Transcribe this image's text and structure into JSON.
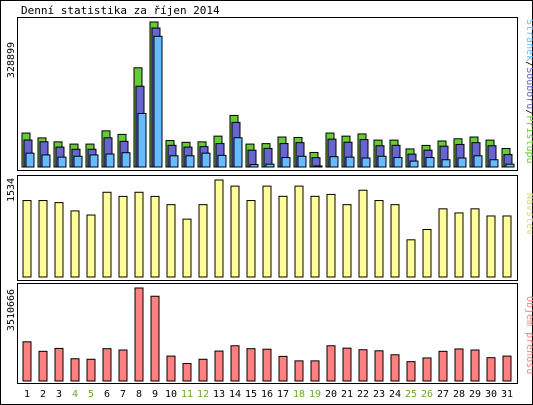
{
  "title": "Denní statistika za říjen 2014",
  "colors": {
    "hits": "#66cc33",
    "files": "#6666cc",
    "pages": "#66bbff",
    "visits": "#ffff99",
    "kbytes": "#ff8080",
    "weekend_label": "#66aa22",
    "weekday_label": "#000000",
    "frame": "#000000"
  },
  "chart_data": [
    {
      "type": "bar",
      "title": "",
      "panel": "top",
      "ymax_label": "328899",
      "ylim": [
        0,
        328899
      ],
      "legend": {
        "pages": "Stránek",
        "sep1": "/",
        "files": "Souborů",
        "sep2": "/",
        "hits": "Přístupů"
      },
      "categories": [
        "1",
        "2",
        "3",
        "4",
        "5",
        "6",
        "7",
        "8",
        "9",
        "10",
        "11",
        "12",
        "13",
        "14",
        "15",
        "16",
        "17",
        "18",
        "19",
        "20",
        "21",
        "22",
        "23",
        "24",
        "25",
        "26",
        "27",
        "28",
        "29",
        "30",
        "31"
      ],
      "series": [
        {
          "name": "Přístupů",
          "values": [
            77000,
            66000,
            57000,
            52000,
            52000,
            82000,
            74000,
            225000,
            328899,
            60000,
            56000,
            57000,
            70000,
            117000,
            52000,
            53000,
            68000,
            67000,
            33000,
            77000,
            70000,
            75000,
            61000,
            61000,
            41000,
            49000,
            59000,
            64000,
            68000,
            61000,
            42000
          ]
        },
        {
          "name": "Souborů",
          "values": [
            68000,
            64000,
            52000,
            47000,
            47000,
            73000,
            65000,
            190000,
            322000,
            56000,
            52000,
            53000,
            60000,
            108000,
            45000,
            49000,
            60000,
            62000,
            28000,
            70000,
            63000,
            69000,
            55000,
            56000,
            36000,
            45000,
            54000,
            58000,
            62000,
            55000,
            35000
          ]
        },
        {
          "name": "Stránek",
          "values": [
            45000,
            41000,
            36000,
            38000,
            41000,
            43000,
            46000,
            135000,
            310000,
            39000,
            39000,
            45000,
            40000,
            80000,
            19000,
            20000,
            35000,
            38000,
            16000,
            37000,
            36000,
            34000,
            38000,
            35000,
            27000,
            35000,
            30000,
            34000,
            39000,
            30000,
            20000
          ]
        }
      ]
    },
    {
      "type": "bar",
      "title": "",
      "panel": "middle",
      "ymax_label": "1534",
      "ylim": [
        0,
        1534
      ],
      "legend": {
        "visits": "Návštěv"
      },
      "categories": [
        "1",
        "2",
        "3",
        "4",
        "5",
        "6",
        "7",
        "8",
        "9",
        "10",
        "11",
        "12",
        "13",
        "14",
        "15",
        "16",
        "17",
        "18",
        "19",
        "20",
        "21",
        "22",
        "23",
        "24",
        "25",
        "26",
        "27",
        "28",
        "29",
        "30",
        "31"
      ],
      "series": [
        {
          "name": "Návštěv",
          "values": [
            1209,
            1209,
            1176,
            1045,
            980,
            1340,
            1275,
            1340,
            1275,
            1144,
            915,
            1144,
            1534,
            1437,
            1209,
            1437,
            1276,
            1437,
            1276,
            1306,
            1144,
            1372,
            1209,
            1144,
            588,
            751,
            1078,
            1013,
            1078,
            965,
            965
          ]
        }
      ]
    },
    {
      "type": "bar",
      "title": "",
      "panel": "bottom",
      "ymax_label": "3510666",
      "ylim": [
        0,
        3510666
      ],
      "legend": {
        "kbytes": "Objem přenosu"
      },
      "categories": [
        "1",
        "2",
        "3",
        "4",
        "5",
        "6",
        "7",
        "8",
        "9",
        "10",
        "11",
        "12",
        "13",
        "14",
        "15",
        "16",
        "17",
        "18",
        "19",
        "20",
        "21",
        "22",
        "23",
        "24",
        "25",
        "26",
        "27",
        "28",
        "29",
        "30",
        "31"
      ],
      "series": [
        {
          "name": "Objem přenosu",
          "values": [
            1480000,
            1120000,
            1230000,
            840000,
            820000,
            1220000,
            1170000,
            3510666,
            3200000,
            940000,
            660000,
            820000,
            1130000,
            1330000,
            1220000,
            1200000,
            930000,
            760000,
            760000,
            1330000,
            1240000,
            1180000,
            1140000,
            990000,
            730000,
            870000,
            1120000,
            1210000,
            1170000,
            880000,
            940000
          ]
        }
      ]
    }
  ],
  "weekend_days": [
    "4",
    "5",
    "11",
    "12",
    "18",
    "19",
    "25",
    "26"
  ]
}
